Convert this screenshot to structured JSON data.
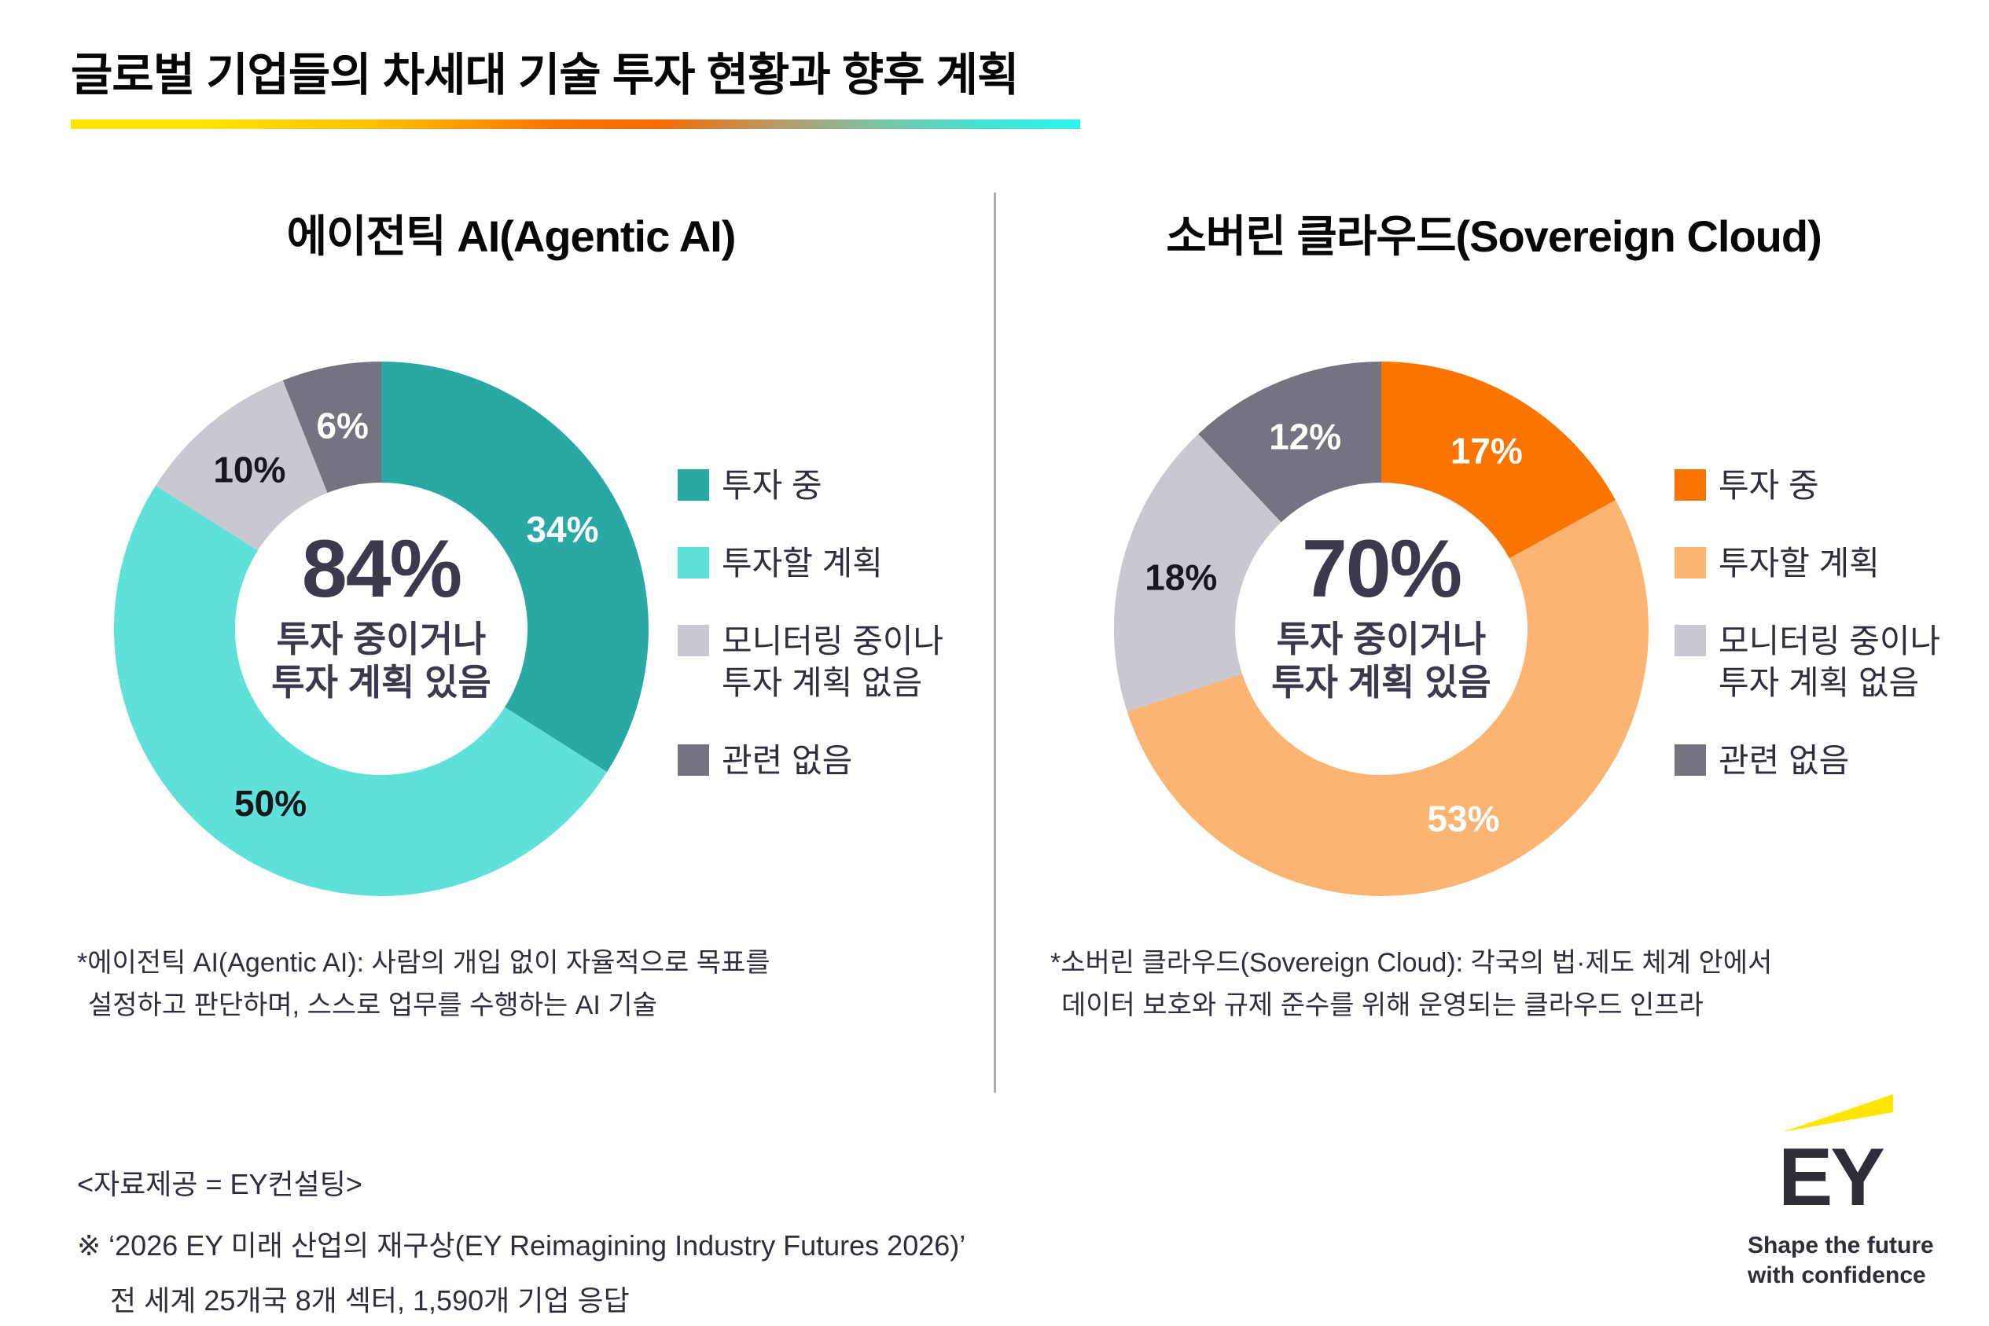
{
  "page": {
    "title": "글로벌 기업들의 차세대 기술 투자 현황과 향후 계획"
  },
  "charts": [
    {
      "title": "에이전틱 AI(Agentic AI)",
      "center_value": "84%",
      "center_caption_line1": "투자 중이거나",
      "center_caption_line2": "투자 계획 있음",
      "footnote_line1": "*에이전틱 AI(Agentic AI): 사람의 개입 없이 자율적으로 목표를",
      "footnote_line2": "설정하고 판단하며, 스스로 업무를 수행하는 AI 기술",
      "segments": [
        {
          "label": "투자 중",
          "value": 34,
          "color": "#2AA8A4",
          "label_color": "#FFFFFF"
        },
        {
          "label": "투자할 계획",
          "value": 50,
          "color": "#5FE0D8",
          "label_color": "#17171F"
        },
        {
          "label": "모니터링 중이나 투자 계획 없음",
          "value": 10,
          "color": "#C9C8D0",
          "label_color": "#17171F"
        },
        {
          "label": "관련 없음",
          "value": 6,
          "color": "#747480",
          "label_color": "#FFFFFF"
        }
      ],
      "legend": [
        {
          "color": "#2AA8A4",
          "lines": [
            "투자 중"
          ]
        },
        {
          "color": "#5FE0D8",
          "lines": [
            "투자할 계획"
          ]
        },
        {
          "color": "#C9C8D0",
          "lines": [
            "모니터링 중이나",
            "투자 계획 없음"
          ]
        },
        {
          "color": "#747480",
          "lines": [
            "관련 없음"
          ]
        }
      ]
    },
    {
      "title": "소버린 클라우드(Sovereign Cloud)",
      "center_value": "70%",
      "center_caption_line1": "투자 중이거나",
      "center_caption_line2": "투자 계획 있음",
      "footnote_line1": "*소버린 클라우드(Sovereign Cloud): 각국의 법·제도 체계 안에서",
      "footnote_line2": "데이터 보호와 규제 준수를 위해 운영되는 클라우드 인프라",
      "segments": [
        {
          "label": "투자 중",
          "value": 17,
          "color": "#FA7500",
          "label_color": "#FFFFFF"
        },
        {
          "label": "투자할 계획",
          "value": 53,
          "color": "#FBB471",
          "label_color": "#FFFFFF"
        },
        {
          "label": "모니터링 중이나 투자 계획 없음",
          "value": 18,
          "color": "#C9C8D0",
          "label_color": "#17171F"
        },
        {
          "label": "관련 없음",
          "value": 12,
          "color": "#747480",
          "label_color": "#FFFFFF"
        }
      ],
      "legend": [
        {
          "color": "#FA7500",
          "lines": [
            "투자 중"
          ]
        },
        {
          "color": "#FBB471",
          "lines": [
            "투자할 계획"
          ]
        },
        {
          "color": "#C9C8D0",
          "lines": [
            "모니터링 중이나",
            "투자 계획 없음"
          ]
        },
        {
          "color": "#747480",
          "lines": [
            "관련 없음"
          ]
        }
      ]
    }
  ],
  "source": {
    "line1": "<자료제공 = EY컨설팅>",
    "line2": "※ ‘2026 EY 미래 산업의 재구상(EY Reimagining Industry Futures 2026)’",
    "line3": "전 세계 25개국 8개 섹터, 1,590개 기업 응답"
  },
  "logo": {
    "name": "EY",
    "tagline_line1": "Shape the future",
    "tagline_line2": "with confidence",
    "beam_color": "#FFE600",
    "text_color": "#2E2E38"
  },
  "chart_data": [
    {
      "type": "pie",
      "subtype": "donut",
      "title": "에이전틱 AI(Agentic AI)",
      "categories": [
        "투자 중",
        "투자할 계획",
        "모니터링 중이나 투자 계획 없음",
        "관련 없음"
      ],
      "values": [
        34,
        50,
        10,
        6
      ],
      "unit": "%",
      "center_total": "84%",
      "center_caption": "투자 중이거나 투자 계획 있음",
      "start_angle_deg": 0,
      "direction": "clockwise",
      "legend_position": "right"
    },
    {
      "type": "pie",
      "subtype": "donut",
      "title": "소버린 클라우드(Sovereign Cloud)",
      "categories": [
        "투자 중",
        "투자할 계획",
        "모니터링 중이나 투자 계획 없음",
        "관련 없음"
      ],
      "values": [
        17,
        53,
        18,
        12
      ],
      "unit": "%",
      "center_total": "70%",
      "center_caption": "투자 중이거나 투자 계획 있음",
      "start_angle_deg": 0,
      "direction": "clockwise",
      "legend_position": "right"
    }
  ]
}
